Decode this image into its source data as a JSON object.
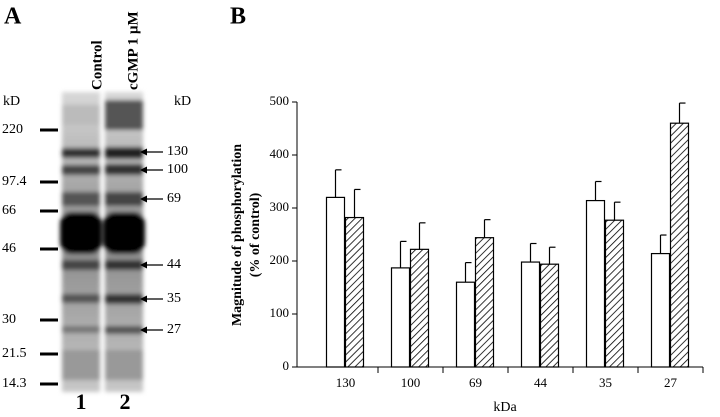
{
  "panel_a": {
    "label": "A",
    "lanes": [
      "Control",
      "cGMP 1 µM"
    ],
    "lane_numbers": [
      "1",
      "2"
    ],
    "left_unit": "kD",
    "markers": [
      220,
      97.4,
      66,
      46,
      30,
      21.5,
      14.3
    ],
    "right_unit": "kD",
    "bands": [
      130,
      100,
      69,
      44,
      35,
      27
    ]
  },
  "chart_data": {
    "type": "bar",
    "panel_label": "B",
    "ylabel": [
      "Magnitude of phosphorylation",
      "(% of control)"
    ],
    "xlabel": "kDa",
    "categories": [
      "130",
      "100",
      "69",
      "44",
      "35",
      "27"
    ],
    "series": [
      {
        "color": "#ffffff",
        "hatch": false,
        "values": [
          320,
          187,
          160,
          198,
          314,
          214
        ],
        "errors": [
          52,
          50,
          37,
          35,
          36,
          35
        ]
      },
      {
        "color": "#ffffff",
        "hatch": true,
        "values": [
          282,
          222,
          244,
          194,
          277,
          460
        ],
        "errors": [
          53,
          50,
          34,
          32,
          34,
          38
        ]
      }
    ],
    "ylim": [
      0,
      500
    ],
    "yticks": [
      0,
      100,
      200,
      300,
      400,
      500
    ]
  }
}
